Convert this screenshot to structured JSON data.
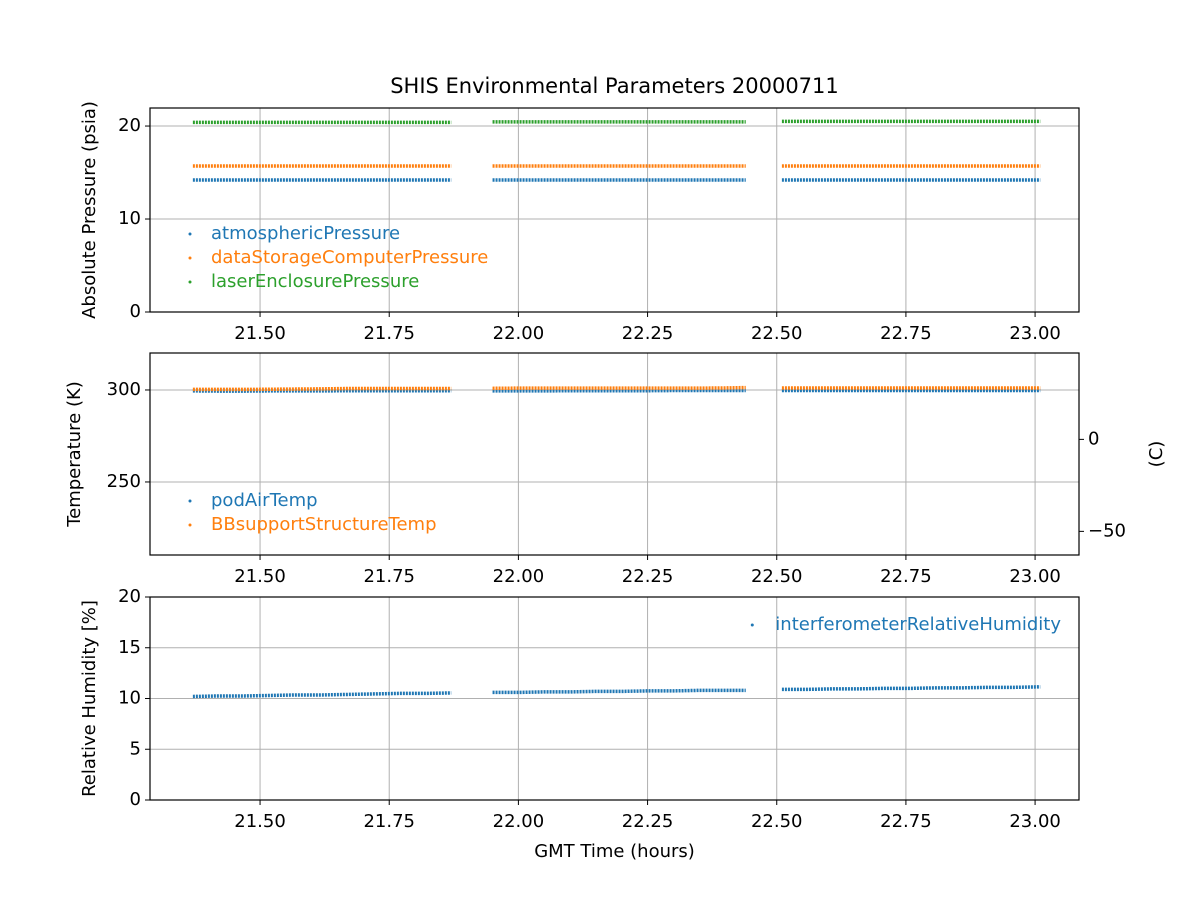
{
  "chart_data": [
    {
      "type": "line",
      "title": "SHIS Environmental Parameters 20000711",
      "y_label": "Absolute Pressure (psia)",
      "x": [
        21.37,
        21.42,
        21.47,
        21.52,
        21.57,
        21.62,
        21.67,
        21.72,
        21.77,
        21.82,
        21.87,
        21.91,
        21.95,
        22.0,
        22.05,
        22.1,
        22.15,
        22.2,
        22.25,
        22.3,
        22.35,
        22.4,
        22.44,
        22.48,
        22.51,
        22.56,
        22.61,
        22.66,
        22.71,
        22.76,
        22.81,
        22.86,
        22.91,
        22.96,
        23.01
      ],
      "series": [
        {
          "name": "atmosphericPressure",
          "color": "#1f77b4",
          "values": [
            14.2,
            14.2,
            14.2,
            14.2,
            14.2,
            14.2,
            14.2,
            14.2,
            14.2,
            14.2,
            14.2,
            null,
            14.2,
            14.2,
            14.2,
            14.2,
            14.2,
            14.2,
            14.2,
            14.2,
            14.2,
            14.2,
            14.2,
            null,
            14.2,
            14.2,
            14.2,
            14.2,
            14.2,
            14.2,
            14.2,
            14.2,
            14.2,
            14.2,
            14.2
          ]
        },
        {
          "name": "dataStorageComputerPressure",
          "color": "#ff7f0e",
          "values": [
            15.7,
            15.7,
            15.7,
            15.7,
            15.7,
            15.7,
            15.7,
            15.7,
            15.7,
            15.7,
            15.7,
            null,
            15.7,
            15.7,
            15.7,
            15.7,
            15.7,
            15.7,
            15.7,
            15.7,
            15.7,
            15.7,
            15.7,
            null,
            15.7,
            15.7,
            15.7,
            15.7,
            15.7,
            15.7,
            15.7,
            15.7,
            15.7,
            15.7,
            15.7
          ]
        },
        {
          "name": "laserEnclosurePressure",
          "color": "#2ca02c",
          "values": [
            20.4,
            20.4,
            20.4,
            20.4,
            20.4,
            20.4,
            20.4,
            20.4,
            20.4,
            20.4,
            20.4,
            null,
            20.45,
            20.45,
            20.45,
            20.45,
            20.45,
            20.45,
            20.45,
            20.45,
            20.45,
            20.45,
            20.45,
            null,
            20.5,
            20.5,
            20.5,
            20.5,
            20.5,
            20.5,
            20.5,
            20.5,
            20.5,
            20.5,
            20.5
          ]
        }
      ],
      "xlim": [
        21.287,
        23.085
      ],
      "xticks": [
        {
          "value": 21.5,
          "label": "21.50"
        },
        {
          "value": 21.75,
          "label": "21.75"
        },
        {
          "value": 22.0,
          "label": "22.00"
        },
        {
          "value": 22.25,
          "label": "22.25"
        },
        {
          "value": 22.5,
          "label": "22.50"
        },
        {
          "value": 22.75,
          "label": "22.75"
        },
        {
          "value": 23.0,
          "label": "23.00"
        }
      ],
      "ylim": [
        0,
        21.94
      ],
      "yticks": [
        0,
        10,
        20
      ],
      "grid": true,
      "legend": "lower-left"
    },
    {
      "type": "line",
      "y_label": "Temperature (K)",
      "y2_label": "(C)",
      "x": [
        21.37,
        21.42,
        21.47,
        21.52,
        21.57,
        21.62,
        21.67,
        21.72,
        21.77,
        21.82,
        21.87,
        21.91,
        21.95,
        22.0,
        22.05,
        22.1,
        22.15,
        22.2,
        22.25,
        22.3,
        22.35,
        22.4,
        22.44,
        22.48,
        22.51,
        22.56,
        22.61,
        22.66,
        22.71,
        22.76,
        22.81,
        22.86,
        22.91,
        22.96,
        23.01
      ],
      "series": [
        {
          "name": "podAirTemp",
          "color": "#1f77b4",
          "values": [
            299.5,
            299.4,
            299.4,
            299.5,
            299.5,
            299.5,
            299.6,
            299.6,
            299.6,
            299.6,
            299.6,
            null,
            299.5,
            299.5,
            299.5,
            299.6,
            299.6,
            299.6,
            299.6,
            299.7,
            299.7,
            299.7,
            299.7,
            null,
            299.7,
            299.7,
            299.7,
            299.7,
            299.7,
            299.7,
            299.7,
            299.7,
            299.7,
            299.7,
            299.7
          ]
        },
        {
          "name": "BBsupportStructureTemp",
          "color": "#ff7f0e",
          "values": [
            300.3,
            300.3,
            300.3,
            300.4,
            300.5,
            300.6,
            300.8,
            300.8,
            300.8,
            300.8,
            300.8,
            null,
            300.9,
            301.0,
            301.0,
            301.0,
            301.0,
            301.0,
            301.0,
            301.0,
            301.0,
            301.1,
            301.3,
            null,
            301.1,
            301.1,
            301.1,
            301.1,
            301.1,
            301.1,
            301.1,
            301.1,
            301.1,
            301.1,
            301.1
          ]
        }
      ],
      "xlim": [
        21.287,
        23.085
      ],
      "xticks": [
        {
          "value": 21.5,
          "label": "21.50"
        },
        {
          "value": 21.75,
          "label": "21.75"
        },
        {
          "value": 22.0,
          "label": "22.00"
        },
        {
          "value": 22.25,
          "label": "22.25"
        },
        {
          "value": 22.5,
          "label": "22.50"
        },
        {
          "value": 22.75,
          "label": "22.75"
        },
        {
          "value": 23.0,
          "label": "23.00"
        }
      ],
      "ylim": [
        210.3,
        320.1
      ],
      "yticks": [
        250,
        300
      ],
      "y2lim": [
        -62.85,
        46.95
      ],
      "y2ticks": [
        {
          "value": -50,
          "label": "−50"
        },
        0
      ],
      "grid": true,
      "legend": "lower-left"
    },
    {
      "type": "line",
      "y_label": "Relative Humidity [%]",
      "x_label": "GMT Time (hours)",
      "x": [
        21.37,
        21.42,
        21.47,
        21.52,
        21.57,
        21.62,
        21.67,
        21.72,
        21.77,
        21.82,
        21.87,
        21.91,
        21.95,
        22.0,
        22.05,
        22.1,
        22.15,
        22.2,
        22.25,
        22.3,
        22.35,
        22.4,
        22.44,
        22.48,
        22.51,
        22.56,
        22.61,
        22.66,
        22.71,
        22.76,
        22.81,
        22.86,
        22.91,
        22.96,
        23.01
      ],
      "series": [
        {
          "name": "interferometerRelativeHumidity",
          "color": "#1f77b4",
          "values": [
            10.2,
            10.25,
            10.25,
            10.3,
            10.35,
            10.35,
            10.4,
            10.45,
            10.5,
            10.5,
            10.55,
            null,
            10.6,
            10.6,
            10.65,
            10.65,
            10.7,
            10.7,
            10.75,
            10.75,
            10.8,
            10.8,
            10.8,
            null,
            10.9,
            10.9,
            10.95,
            10.95,
            11.0,
            11.0,
            11.05,
            11.05,
            11.1,
            11.1,
            11.15
          ]
        }
      ],
      "xlim": [
        21.287,
        23.085
      ],
      "xticks": [
        {
          "value": 21.5,
          "label": "21.50"
        },
        {
          "value": 21.75,
          "label": "21.75"
        },
        {
          "value": 22.0,
          "label": "22.00"
        },
        {
          "value": 22.25,
          "label": "22.25"
        },
        {
          "value": 22.5,
          "label": "22.50"
        },
        {
          "value": 22.75,
          "label": "22.75"
        },
        {
          "value": 23.0,
          "label": "23.00"
        }
      ],
      "ylim": [
        0,
        20
      ],
      "yticks": [
        0,
        5,
        10,
        15,
        20
      ],
      "grid": true,
      "legend": "upper-right"
    }
  ]
}
